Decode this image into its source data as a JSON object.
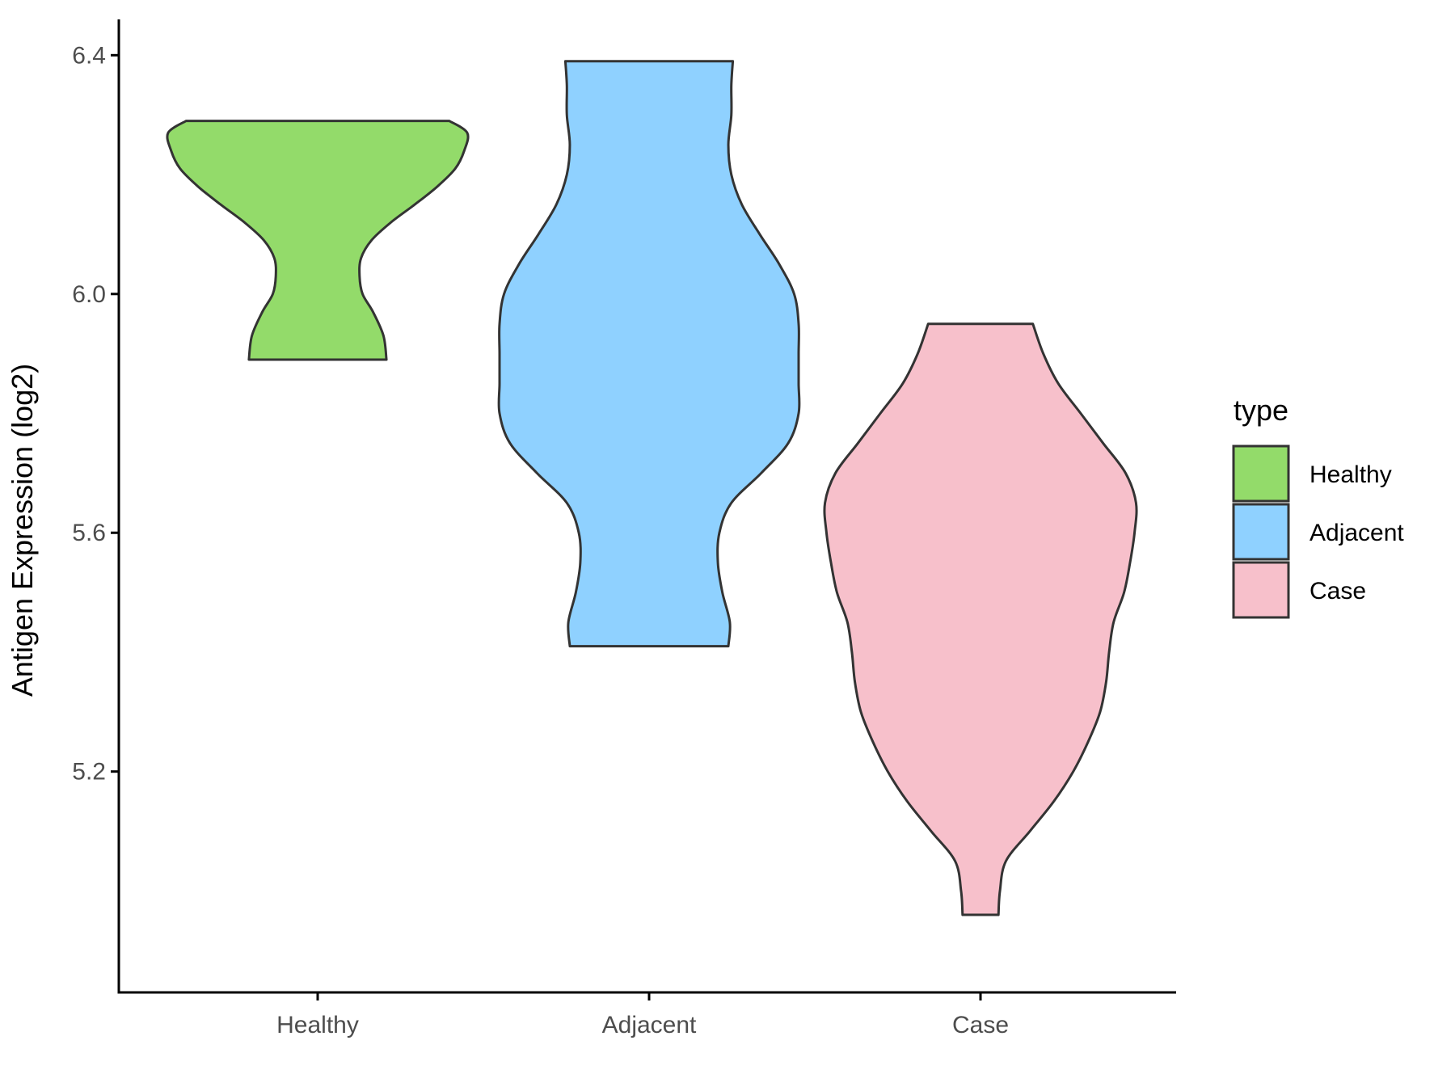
{
  "chart_data": {
    "type": "violin",
    "title": "",
    "xlabel": "",
    "ylabel": "Antigen Expression (log2)",
    "ylim": [
      4.83,
      6.46
    ],
    "yticks": [
      5.2,
      5.6,
      6.0,
      6.4
    ],
    "ytick_labels": [
      "5.2",
      "5.6",
      "6.0",
      "6.4"
    ],
    "categories": [
      "Healthy",
      "Adjacent",
      "Case"
    ],
    "grid": false,
    "legend": {
      "title": "type",
      "position": "right",
      "entries": [
        "Healthy",
        "Adjacent",
        "Case"
      ]
    },
    "series": [
      {
        "name": "Healthy",
        "color": "#93db6a",
        "min": 5.89,
        "max": 6.29,
        "profile": [
          [
            5.89,
            0.46
          ],
          [
            5.93,
            0.44
          ],
          [
            5.97,
            0.37
          ],
          [
            6.0,
            0.3
          ],
          [
            6.03,
            0.28
          ],
          [
            6.06,
            0.29
          ],
          [
            6.09,
            0.36
          ],
          [
            6.12,
            0.49
          ],
          [
            6.15,
            0.65
          ],
          [
            6.18,
            0.8
          ],
          [
            6.21,
            0.92
          ],
          [
            6.24,
            0.98
          ],
          [
            6.27,
            1.0
          ],
          [
            6.29,
            0.88
          ]
        ]
      },
      {
        "name": "Adjacent",
        "color": "#8fd1ff",
        "min": 5.41,
        "max": 6.39,
        "profile": [
          [
            5.41,
            0.53
          ],
          [
            5.45,
            0.54
          ],
          [
            5.5,
            0.49
          ],
          [
            5.55,
            0.46
          ],
          [
            5.6,
            0.47
          ],
          [
            5.65,
            0.55
          ],
          [
            5.7,
            0.75
          ],
          [
            5.75,
            0.93
          ],
          [
            5.8,
            1.0
          ],
          [
            5.85,
            1.0
          ],
          [
            5.9,
            1.0
          ],
          [
            5.95,
            1.0
          ],
          [
            6.0,
            0.97
          ],
          [
            6.05,
            0.87
          ],
          [
            6.1,
            0.74
          ],
          [
            6.15,
            0.62
          ],
          [
            6.2,
            0.55
          ],
          [
            6.25,
            0.53
          ],
          [
            6.3,
            0.55
          ],
          [
            6.35,
            0.55
          ],
          [
            6.39,
            0.56
          ]
        ]
      },
      {
        "name": "Case",
        "color": "#f7c0cb",
        "min": 4.96,
        "max": 5.95,
        "profile": [
          [
            4.96,
            0.12
          ],
          [
            5.0,
            0.13
          ],
          [
            5.05,
            0.17
          ],
          [
            5.1,
            0.33
          ],
          [
            5.15,
            0.49
          ],
          [
            5.2,
            0.62
          ],
          [
            5.25,
            0.72
          ],
          [
            5.3,
            0.8
          ],
          [
            5.35,
            0.84
          ],
          [
            5.4,
            0.86
          ],
          [
            5.45,
            0.89
          ],
          [
            5.5,
            0.96
          ],
          [
            5.55,
            1.0
          ],
          [
            5.6,
            1.03
          ],
          [
            5.65,
            1.04
          ],
          [
            5.7,
            0.97
          ],
          [
            5.75,
            0.82
          ],
          [
            5.8,
            0.67
          ],
          [
            5.85,
            0.52
          ],
          [
            5.9,
            0.42
          ],
          [
            5.95,
            0.35
          ]
        ]
      }
    ]
  },
  "colors": {
    "outline": "#333333",
    "axis": "#000000",
    "tick_text": "#4d4d4d"
  }
}
